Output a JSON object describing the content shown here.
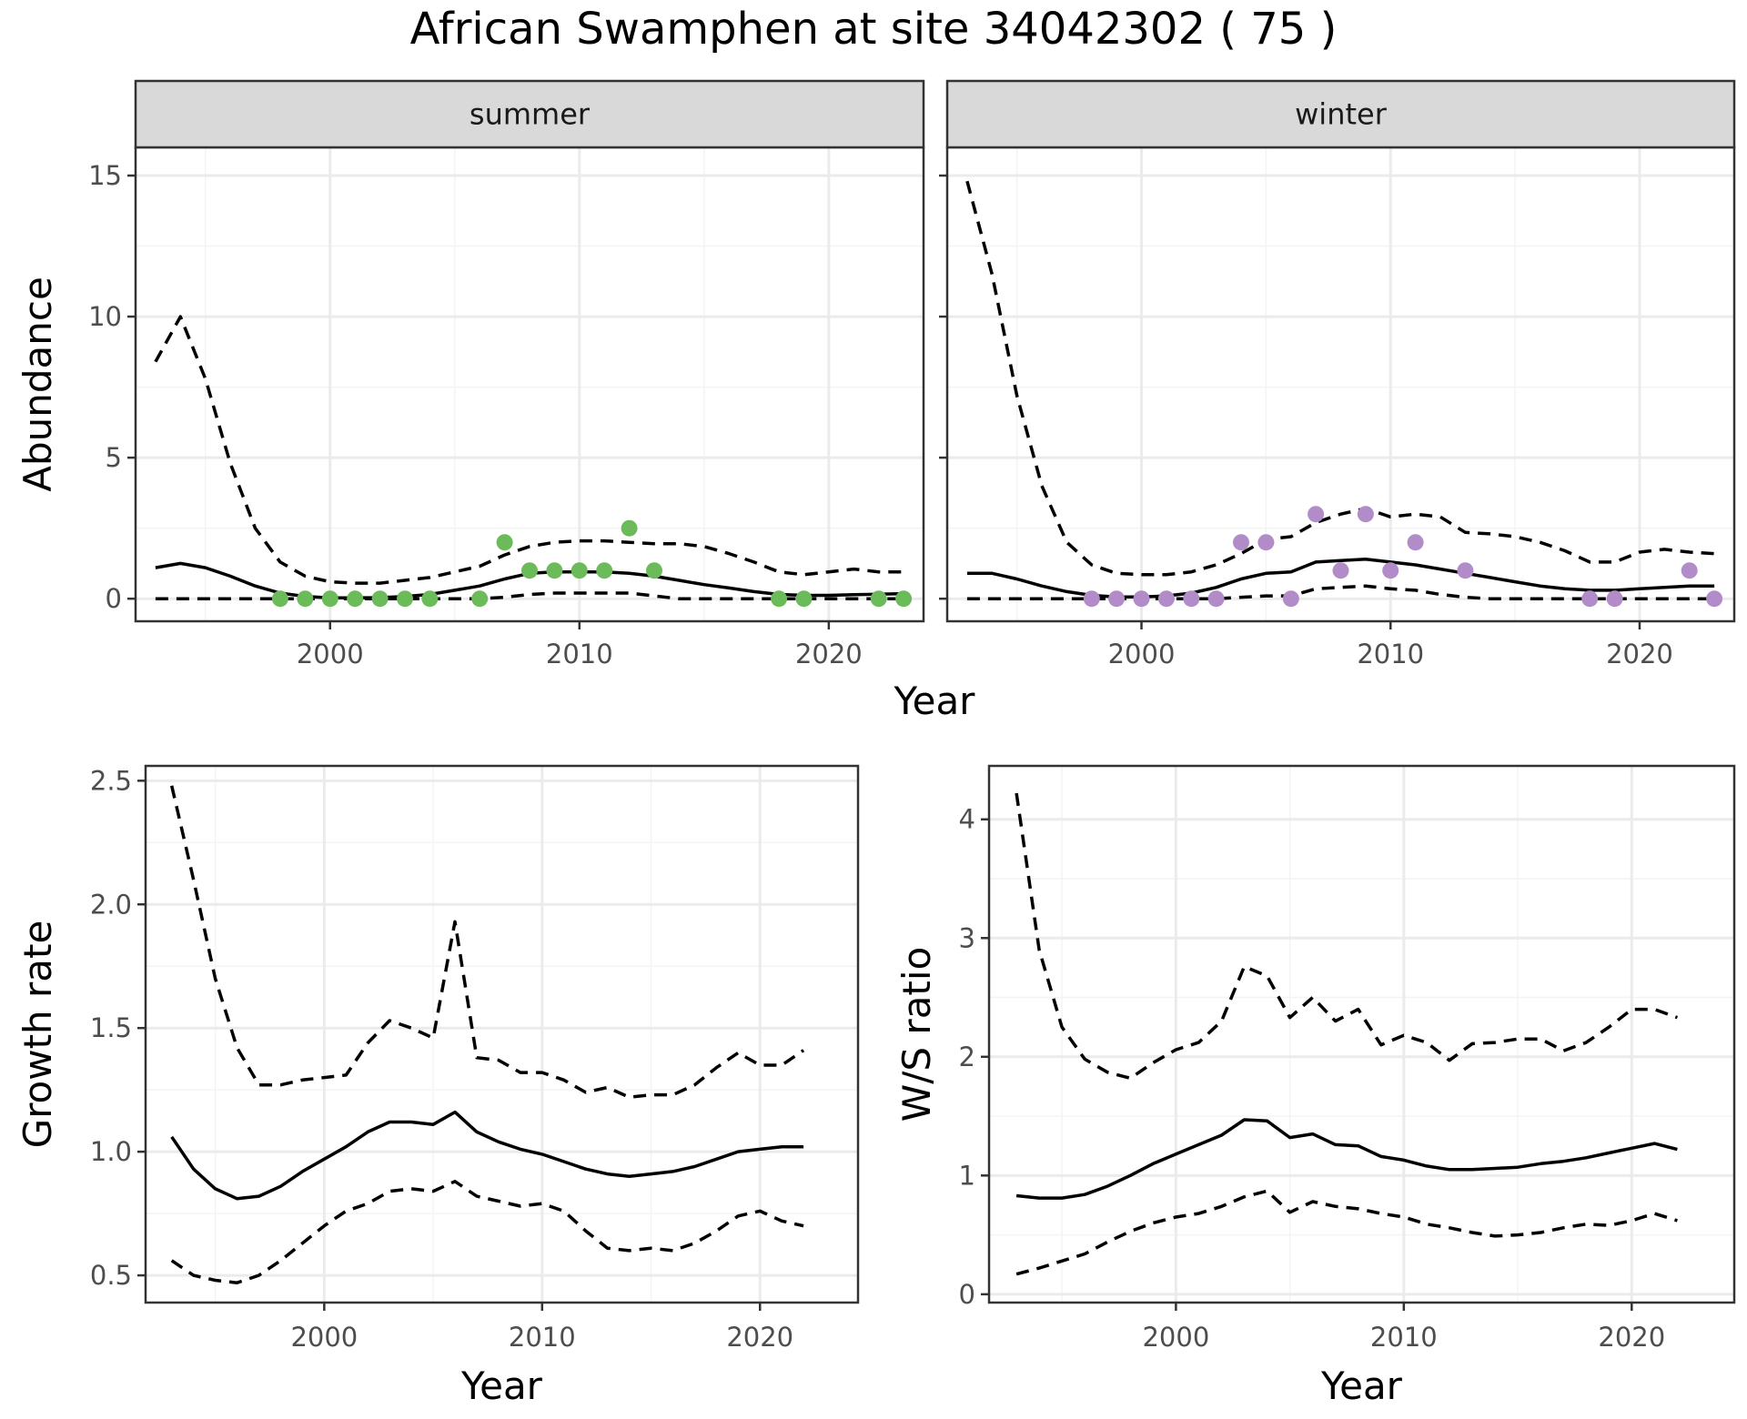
{
  "title": "African Swamphen at site 34042302 ( 75 )",
  "colors": {
    "summer_points": "#6cbb5a",
    "winter_points": "#b28cc8",
    "line": "#000000",
    "grid_major": "#ebebeb",
    "grid_minor": "#f4f4f4",
    "strip_bg": "#d9d9d9"
  },
  "chart_data": [
    {
      "id": "abundance",
      "type": "line",
      "facets": [
        "summer",
        "winter"
      ],
      "xlabel": "Year",
      "ylabel": "Abundance",
      "xlim": [
        1992.2,
        2023.8
      ],
      "ylim": [
        -0.8,
        16.0
      ],
      "xticks": [
        2000,
        2010,
        2020
      ],
      "yticks": [
        0,
        5,
        10,
        15
      ],
      "grid": true,
      "panels": [
        {
          "facet": "summer",
          "point_color": "#6cbb5a",
          "mean": {
            "x": [
              1993,
              1994,
              1995,
              1996,
              1997,
              1998,
              1999,
              2000,
              2001,
              2002,
              2003,
              2004,
              2005,
              2006,
              2007,
              2008,
              2009,
              2010,
              2011,
              2012,
              2013,
              2014,
              2015,
              2016,
              2017,
              2018,
              2019,
              2020,
              2021,
              2022,
              2023
            ],
            "y": [
              1.1,
              1.25,
              1.1,
              0.8,
              0.45,
              0.2,
              0.08,
              0.03,
              0.03,
              0.04,
              0.08,
              0.15,
              0.3,
              0.45,
              0.7,
              0.9,
              0.95,
              0.95,
              0.95,
              0.9,
              0.8,
              0.65,
              0.5,
              0.38,
              0.25,
              0.15,
              0.12,
              0.12,
              0.14,
              0.16,
              0.18
            ]
          },
          "upper": {
            "x": [
              1993,
              1994,
              1995,
              1996,
              1997,
              1998,
              1999,
              2000,
              2001,
              2002,
              2003,
              2004,
              2005,
              2006,
              2007,
              2008,
              2009,
              2010,
              2011,
              2012,
              2013,
              2014,
              2015,
              2016,
              2017,
              2018,
              2019,
              2020,
              2021,
              2022,
              2023
            ],
            "y": [
              8.4,
              10.0,
              7.8,
              4.8,
              2.5,
              1.3,
              0.8,
              0.6,
              0.55,
              0.55,
              0.65,
              0.75,
              0.95,
              1.15,
              1.55,
              1.85,
              2.0,
              2.05,
              2.05,
              2.0,
              1.95,
              1.95,
              1.85,
              1.6,
              1.3,
              0.95,
              0.85,
              0.95,
              1.05,
              0.95,
              0.95
            ]
          },
          "lower": {
            "x": [
              1993,
              1994,
              1995,
              1996,
              1997,
              1998,
              1999,
              2000,
              2001,
              2002,
              2003,
              2004,
              2005,
              2006,
              2007,
              2008,
              2009,
              2010,
              2011,
              2012,
              2013,
              2014,
              2015,
              2016,
              2017,
              2018,
              2019,
              2020,
              2021,
              2022,
              2023
            ],
            "y": [
              0,
              0,
              0,
              0,
              0,
              0,
              0,
              0,
              0,
              0,
              0,
              0,
              0,
              0,
              0.05,
              0.15,
              0.2,
              0.2,
              0.2,
              0.2,
              0.1,
              0,
              0,
              0,
              0,
              0,
              0,
              0,
              0,
              0,
              0
            ]
          },
          "points": {
            "x": [
              1998,
              1999,
              2000,
              2001,
              2002,
              2003,
              2004,
              2006,
              2007,
              2008,
              2009,
              2010,
              2011,
              2012,
              2013,
              2018,
              2019,
              2022,
              2023
            ],
            "y": [
              0,
              0,
              0,
              0,
              0,
              0,
              0,
              0,
              2,
              1,
              1,
              1,
              1,
              2.5,
              1,
              0,
              0,
              0,
              0
            ]
          }
        },
        {
          "facet": "winter",
          "point_color": "#b28cc8",
          "mean": {
            "x": [
              1993,
              1994,
              1995,
              1996,
              1997,
              1998,
              1999,
              2000,
              2001,
              2002,
              2003,
              2004,
              2005,
              2006,
              2007,
              2008,
              2009,
              2010,
              2011,
              2012,
              2013,
              2014,
              2015,
              2016,
              2017,
              2018,
              2019,
              2020,
              2021,
              2022,
              2023
            ],
            "y": [
              0.9,
              0.9,
              0.7,
              0.45,
              0.25,
              0.12,
              0.06,
              0.06,
              0.1,
              0.2,
              0.4,
              0.7,
              0.9,
              0.95,
              1.3,
              1.35,
              1.4,
              1.3,
              1.2,
              1.05,
              0.9,
              0.75,
              0.6,
              0.45,
              0.35,
              0.3,
              0.3,
              0.35,
              0.4,
              0.45,
              0.45
            ]
          },
          "upper": {
            "x": [
              1993,
              1994,
              1995,
              1996,
              1997,
              1998,
              1999,
              2000,
              2001,
              2002,
              2003,
              2004,
              2005,
              2006,
              2007,
              2008,
              2009,
              2010,
              2011,
              2012,
              2013,
              2014,
              2015,
              2016,
              2017,
              2018,
              2019,
              2020,
              2021,
              2022,
              2023
            ],
            "y": [
              14.8,
              11.5,
              7.2,
              4.0,
              2.0,
              1.2,
              0.9,
              0.85,
              0.85,
              0.95,
              1.2,
              1.6,
              2.1,
              2.2,
              2.7,
              3.0,
              3.2,
              2.9,
              3.0,
              2.9,
              2.35,
              2.3,
              2.2,
              2.0,
              1.7,
              1.3,
              1.3,
              1.65,
              1.75,
              1.65,
              1.6
            ]
          },
          "lower": {
            "x": [
              1993,
              1994,
              1995,
              1996,
              1997,
              1998,
              1999,
              2000,
              2001,
              2002,
              2003,
              2004,
              2005,
              2006,
              2007,
              2008,
              2009,
              2010,
              2011,
              2012,
              2013,
              2014,
              2015,
              2016,
              2017,
              2018,
              2019,
              2020,
              2021,
              2022,
              2023
            ],
            "y": [
              0,
              0,
              0,
              0,
              0,
              0,
              0,
              0,
              0,
              0,
              0,
              0.05,
              0.1,
              0.1,
              0.35,
              0.4,
              0.45,
              0.35,
              0.3,
              0.15,
              0.05,
              0,
              0,
              0,
              0,
              0,
              0,
              0,
              0,
              0,
              0
            ]
          },
          "points": {
            "x": [
              1998,
              1999,
              2000,
              2001,
              2002,
              2003,
              2004,
              2005,
              2006,
              2007,
              2008,
              2009,
              2010,
              2011,
              2013,
              2018,
              2019,
              2022,
              2023
            ],
            "y": [
              0,
              0,
              0,
              0,
              0,
              0,
              2,
              2,
              0,
              3,
              1,
              3,
              1,
              2,
              1,
              0,
              0,
              1,
              0
            ]
          }
        }
      ]
    },
    {
      "id": "growth",
      "type": "line",
      "xlabel": "Year",
      "ylabel": "Growth rate",
      "xlim": [
        1991.8,
        2024.5
      ],
      "ylim": [
        0.39,
        2.56
      ],
      "xticks": [
        2000,
        2010,
        2020
      ],
      "yticks": [
        0.5,
        1.0,
        1.5,
        2.0,
        2.5
      ],
      "ytick_labels": [
        "0.5",
        "1.0",
        "1.5",
        "2.0",
        "2.5"
      ],
      "grid": true,
      "mean": {
        "x": [
          1993,
          1994,
          1995,
          1996,
          1997,
          1998,
          1999,
          2000,
          2001,
          2002,
          2003,
          2004,
          2005,
          2006,
          2007,
          2008,
          2009,
          2010,
          2011,
          2012,
          2013,
          2014,
          2015,
          2016,
          2017,
          2018,
          2019,
          2020,
          2021,
          2022
        ],
        "y": [
          1.06,
          0.93,
          0.85,
          0.81,
          0.82,
          0.86,
          0.92,
          0.97,
          1.02,
          1.08,
          1.12,
          1.12,
          1.11,
          1.16,
          1.08,
          1.04,
          1.01,
          0.99,
          0.96,
          0.93,
          0.91,
          0.9,
          0.91,
          0.92,
          0.94,
          0.97,
          1.0,
          1.01,
          1.02,
          1.02
        ]
      },
      "upper": {
        "x": [
          1993,
          1994,
          1995,
          1996,
          1997,
          1998,
          1999,
          2000,
          2001,
          2002,
          2003,
          2004,
          2005,
          2006,
          2007,
          2008,
          2009,
          2010,
          2011,
          2012,
          2013,
          2014,
          2015,
          2016,
          2017,
          2018,
          2019,
          2020,
          2021,
          2022
        ],
        "y": [
          2.48,
          2.1,
          1.7,
          1.42,
          1.27,
          1.27,
          1.29,
          1.3,
          1.31,
          1.44,
          1.53,
          1.5,
          1.46,
          1.93,
          1.38,
          1.37,
          1.32,
          1.32,
          1.29,
          1.24,
          1.26,
          1.22,
          1.23,
          1.23,
          1.27,
          1.34,
          1.4,
          1.35,
          1.35,
          1.41
        ]
      },
      "lower": {
        "x": [
          1993,
          1994,
          1995,
          1996,
          1997,
          1998,
          1999,
          2000,
          2001,
          2002,
          2003,
          2004,
          2005,
          2006,
          2007,
          2008,
          2009,
          2010,
          2011,
          2012,
          2013,
          2014,
          2015,
          2016,
          2017,
          2018,
          2019,
          2020,
          2021,
          2022
        ],
        "y": [
          0.56,
          0.5,
          0.48,
          0.47,
          0.5,
          0.56,
          0.63,
          0.7,
          0.76,
          0.79,
          0.84,
          0.85,
          0.84,
          0.88,
          0.82,
          0.8,
          0.78,
          0.79,
          0.76,
          0.68,
          0.61,
          0.6,
          0.61,
          0.6,
          0.63,
          0.68,
          0.74,
          0.76,
          0.72,
          0.7
        ]
      }
    },
    {
      "id": "ws_ratio",
      "type": "line",
      "xlabel": "Year",
      "ylabel": "W/S ratio",
      "xlim": [
        1991.8,
        2024.5
      ],
      "ylim": [
        -0.07,
        4.45
      ],
      "xticks": [
        2000,
        2010,
        2020
      ],
      "yticks": [
        0,
        1,
        2,
        3,
        4
      ],
      "ytick_labels": [
        "0",
        "1",
        "2",
        "3",
        "4"
      ],
      "grid": true,
      "mean": {
        "x": [
          1993,
          1994,
          1995,
          1996,
          1997,
          1998,
          1999,
          2000,
          2001,
          2002,
          2003,
          2004,
          2005,
          2006,
          2007,
          2008,
          2009,
          2010,
          2011,
          2012,
          2013,
          2014,
          2015,
          2016,
          2017,
          2018,
          2019,
          2020,
          2021,
          2022
        ],
        "y": [
          0.83,
          0.81,
          0.81,
          0.84,
          0.91,
          1.0,
          1.1,
          1.18,
          1.26,
          1.34,
          1.47,
          1.46,
          1.32,
          1.35,
          1.26,
          1.25,
          1.16,
          1.13,
          1.08,
          1.05,
          1.05,
          1.06,
          1.07,
          1.1,
          1.12,
          1.15,
          1.19,
          1.23,
          1.27,
          1.22
        ]
      },
      "upper": {
        "x": [
          1993,
          1994,
          1995,
          1996,
          1997,
          1998,
          1999,
          2000,
          2001,
          2002,
          2003,
          2004,
          2005,
          2006,
          2007,
          2008,
          2009,
          2010,
          2011,
          2012,
          2013,
          2014,
          2015,
          2016,
          2017,
          2018,
          2019,
          2020,
          2021,
          2022
        ],
        "y": [
          4.22,
          2.9,
          2.25,
          1.98,
          1.87,
          1.82,
          1.95,
          2.06,
          2.12,
          2.3,
          2.76,
          2.68,
          2.33,
          2.5,
          2.3,
          2.4,
          2.1,
          2.18,
          2.12,
          1.97,
          2.11,
          2.12,
          2.15,
          2.15,
          2.05,
          2.12,
          2.25,
          2.4,
          2.4,
          2.33
        ]
      },
      "lower": {
        "x": [
          1993,
          1994,
          1995,
          1996,
          1997,
          1998,
          1999,
          2000,
          2001,
          2002,
          2003,
          2004,
          2005,
          2006,
          2007,
          2008,
          2009,
          2010,
          2011,
          2012,
          2013,
          2014,
          2015,
          2016,
          2017,
          2018,
          2019,
          2020,
          2021,
          2022
        ],
        "y": [
          0.17,
          0.22,
          0.28,
          0.34,
          0.44,
          0.53,
          0.6,
          0.65,
          0.68,
          0.74,
          0.82,
          0.87,
          0.69,
          0.78,
          0.74,
          0.72,
          0.68,
          0.65,
          0.59,
          0.56,
          0.52,
          0.49,
          0.5,
          0.52,
          0.56,
          0.59,
          0.58,
          0.62,
          0.68,
          0.62
        ]
      }
    }
  ]
}
